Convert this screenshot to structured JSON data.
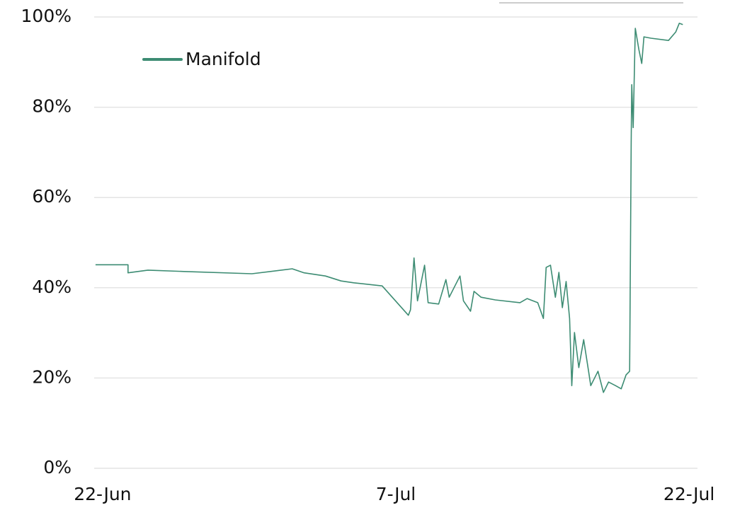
{
  "chart_data": {
    "type": "line",
    "x": [
      -0.36,
      1.3,
      1.3,
      2.32,
      4.16,
      7.64,
      9.7,
      10.31,
      11.4,
      12.2,
      12.85,
      14.3,
      15.64,
      15.75,
      15.93,
      16.11,
      16.47,
      16.65,
      17.19,
      17.56,
      17.73,
      18.28,
      18.46,
      18.82,
      19.0,
      19.36,
      20.09,
      21.35,
      21.72,
      22.26,
      22.55,
      22.69,
      22.91,
      23.16,
      23.34,
      23.52,
      23.71,
      23.89,
      24.0,
      24.14,
      24.36,
      24.61,
      24.86,
      24.97,
      25.34,
      25.62,
      25.88,
      26.24,
      26.53,
      26.78,
      26.96,
      27.04,
      27.07,
      27.14,
      27.25,
      27.43,
      27.58,
      27.69,
      28.05,
      28.95,
      29.32,
      29.5,
      29.68
    ],
    "series": [
      {
        "name": "Manifold",
        "color": "#3d8c73",
        "values": [
          45.1,
          45.1,
          43.3,
          43.9,
          43.6,
          43.1,
          44.2,
          43.3,
          42.6,
          41.5,
          41.1,
          40.4,
          33.9,
          35.1,
          46.6,
          37.1,
          45.0,
          36.7,
          36.4,
          41.8,
          37.9,
          42.6,
          37.1,
          34.8,
          39.2,
          37.9,
          37.3,
          36.7,
          37.6,
          36.7,
          33.2,
          44.5,
          45.0,
          37.9,
          43.4,
          35.6,
          41.4,
          33.2,
          18.3,
          30.1,
          22.3,
          28.5,
          21.5,
          18.3,
          21.5,
          16.8,
          19.1,
          18.3,
          17.6,
          20.7,
          21.5,
          72.4,
          85.0,
          75.5,
          97.5,
          92.8,
          89.7,
          95.6,
          95.3,
          94.8,
          96.7,
          98.6,
          98.3
        ]
      }
    ],
    "xlim": [
      -0.43,
      30.43
    ],
    "xticks": [
      {
        "value": 0,
        "label": "22-Jun"
      },
      {
        "value": 15,
        "label": "7-Jul"
      },
      {
        "value": 30,
        "label": "22-Jul"
      }
    ],
    "ylim": [
      0,
      100
    ],
    "yticks": [
      {
        "value": 0,
        "label": "0%"
      },
      {
        "value": 20,
        "label": "20%"
      },
      {
        "value": 40,
        "label": "40%"
      },
      {
        "value": 60,
        "label": "60%"
      },
      {
        "value": 80,
        "label": "80%"
      },
      {
        "value": 100,
        "label": "100%"
      }
    ],
    "grid": true
  }
}
